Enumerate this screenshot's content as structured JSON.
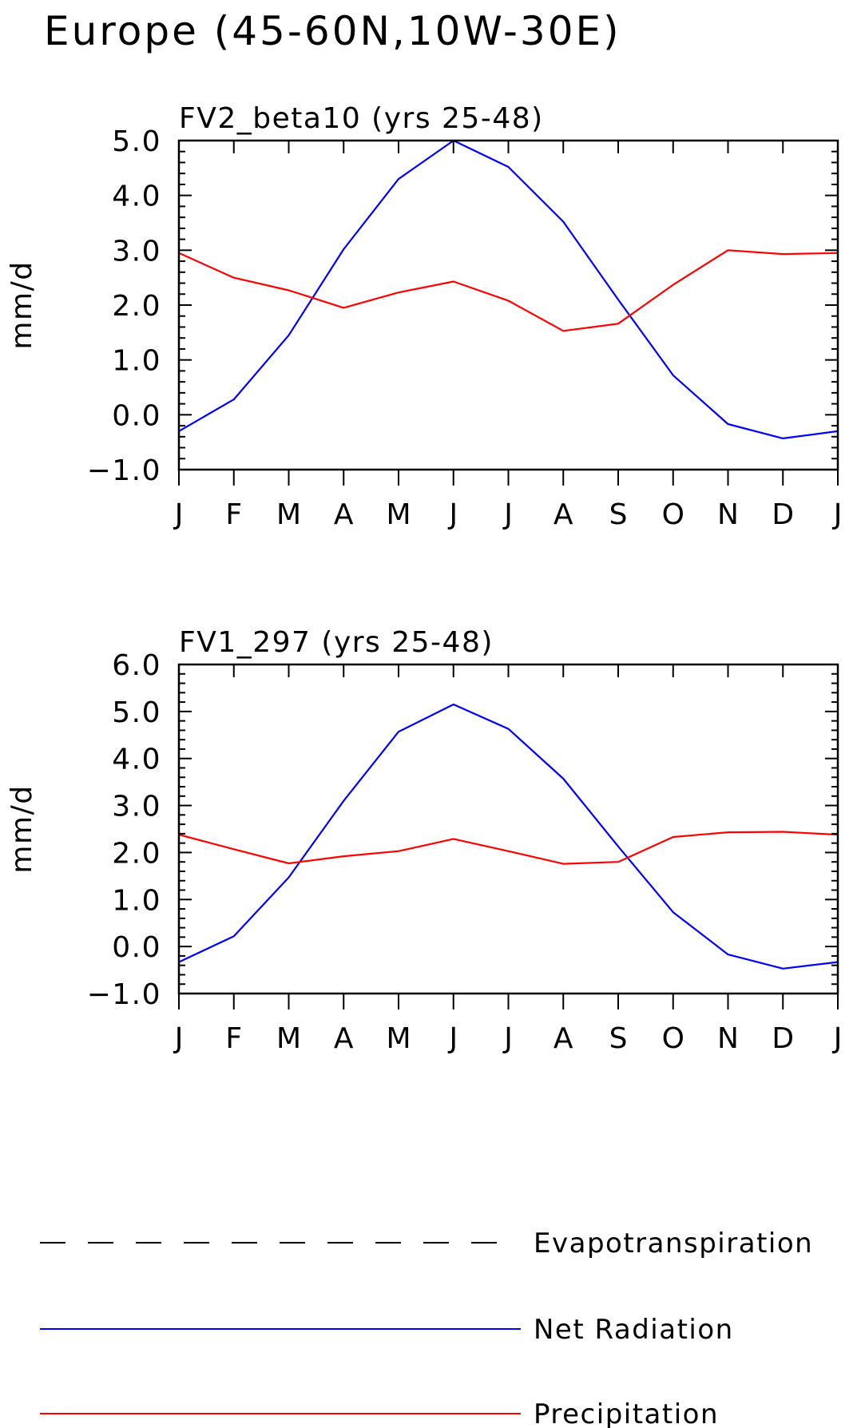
{
  "figure": {
    "title": "Europe (45-60N,10W-30E)",
    "legend": [
      {
        "label": "Evapotranspiration",
        "color": "#000000",
        "style": "dashed"
      },
      {
        "label": "Net Radiation",
        "color": "#0000ff",
        "style": "solid"
      },
      {
        "label": "Precipitation",
        "color": "#ff0000",
        "style": "solid"
      }
    ]
  },
  "chart_data": [
    {
      "type": "line",
      "title": "FV2_beta10 (yrs 25-48)",
      "xlabel": "",
      "ylabel": "mm/d",
      "ylim": [
        -1.0,
        5.0
      ],
      "yticks": [
        "-1.0",
        "0.0",
        "1.0",
        "2.0",
        "3.0",
        "4.0",
        "5.0"
      ],
      "categories": [
        "J",
        "F",
        "M",
        "A",
        "M",
        "J",
        "J",
        "A",
        "S",
        "O",
        "N",
        "D",
        "J"
      ],
      "series": [
        {
          "name": "Net Radiation",
          "color": "#0000ff",
          "values": [
            -0.3,
            0.28,
            1.45,
            3.02,
            4.3,
            5.0,
            4.52,
            3.52,
            2.1,
            0.72,
            -0.17,
            -0.43,
            -0.3
          ]
        },
        {
          "name": "Precipitation",
          "color": "#ff0000",
          "values": [
            2.95,
            2.5,
            2.27,
            1.95,
            2.23,
            2.43,
            2.08,
            1.53,
            1.66,
            2.37,
            3.0,
            2.93,
            2.95
          ]
        }
      ]
    },
    {
      "type": "line",
      "title": "FV1_297 (yrs 25-48)",
      "xlabel": "",
      "ylabel": "mm/d",
      "ylim": [
        -1.0,
        6.0
      ],
      "yticks": [
        "-1.0",
        "0.0",
        "1.0",
        "2.0",
        "3.0",
        "4.0",
        "5.0",
        "6.0"
      ],
      "categories": [
        "J",
        "F",
        "M",
        "A",
        "M",
        "J",
        "J",
        "A",
        "S",
        "O",
        "N",
        "D",
        "J"
      ],
      "series": [
        {
          "name": "Net Radiation",
          "color": "#0000ff",
          "values": [
            -0.33,
            0.22,
            1.47,
            3.1,
            4.57,
            5.15,
            4.63,
            3.57,
            2.13,
            0.73,
            -0.17,
            -0.47,
            -0.33
          ]
        },
        {
          "name": "Precipitation",
          "color": "#ff0000",
          "values": [
            2.38,
            2.07,
            1.77,
            1.92,
            2.03,
            2.29,
            2.03,
            1.76,
            1.8,
            2.33,
            2.43,
            2.44,
            2.38
          ]
        }
      ]
    }
  ]
}
